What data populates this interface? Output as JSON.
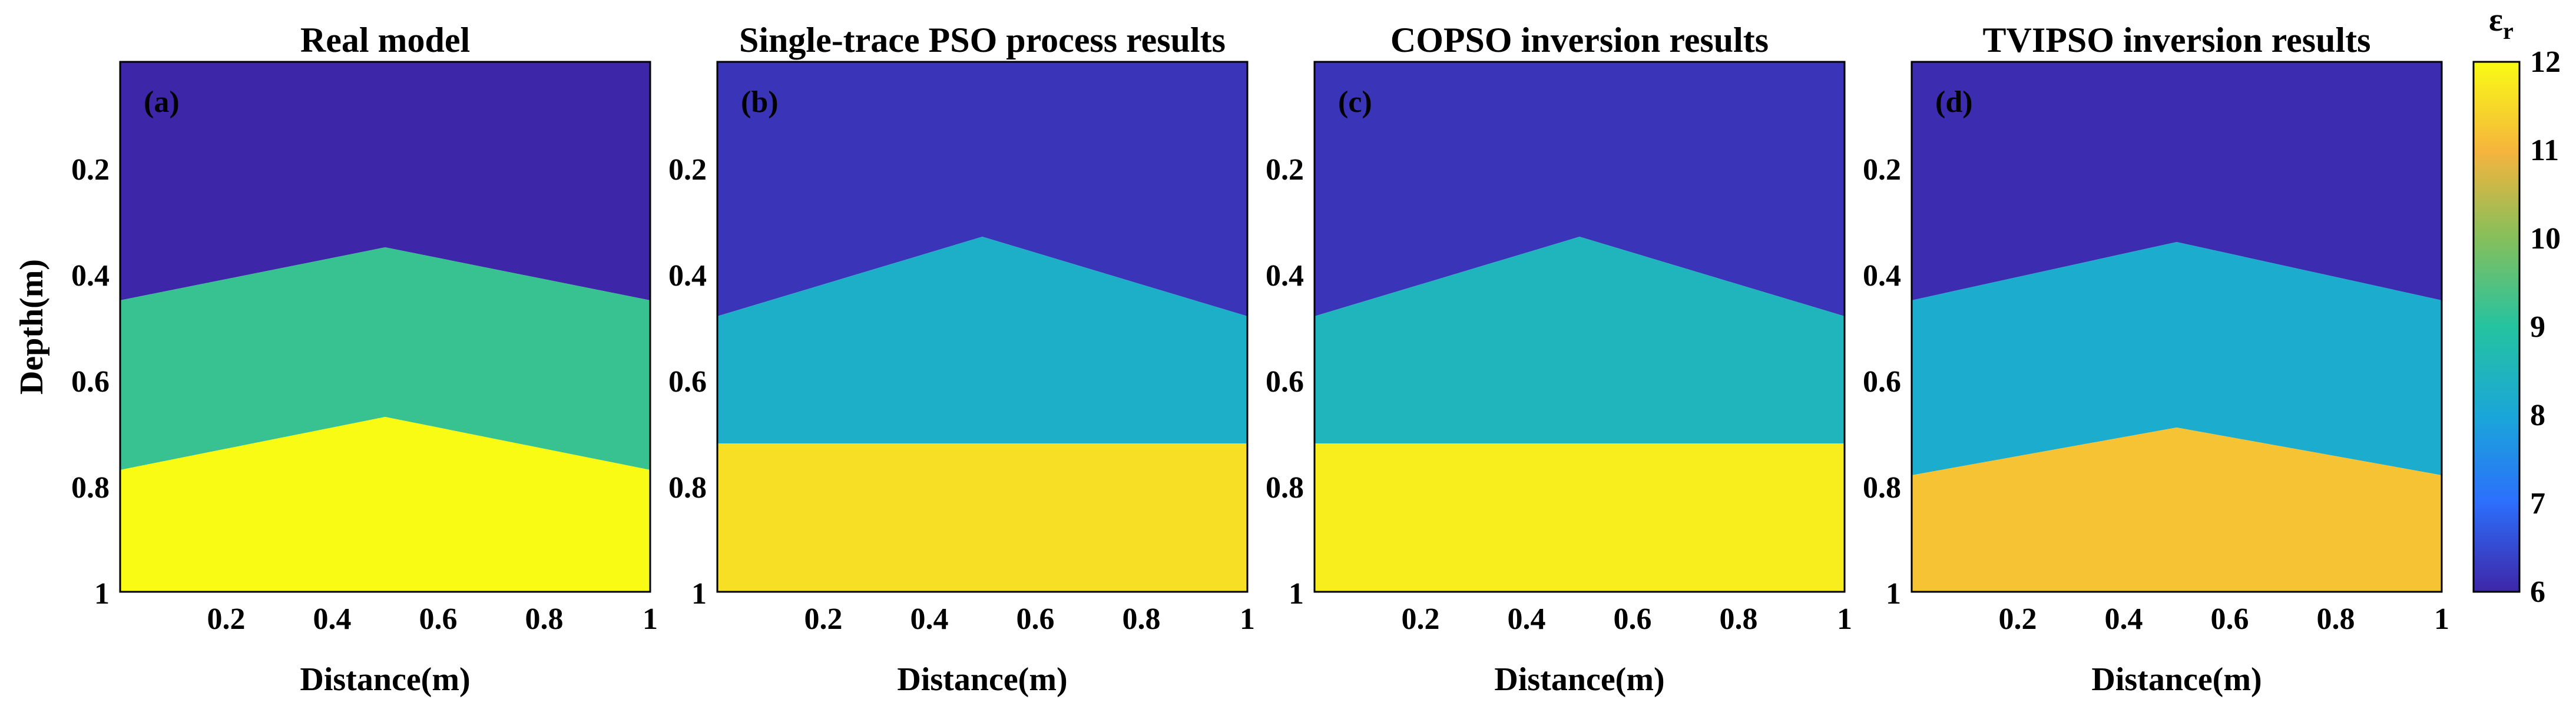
{
  "chart_data": {
    "type": "heatmap",
    "xlabel": "Distance(m)",
    "ylabel": "Depth(m)",
    "xlim": [
      0,
      1
    ],
    "ylim": [
      0,
      1
    ],
    "x_ticks": [
      "0.2",
      "0.4",
      "0.6",
      "0.8",
      "1"
    ],
    "y_ticks": [
      "0.2",
      "0.4",
      "0.6",
      "0.8",
      "1"
    ],
    "colorbar": {
      "label": "ε",
      "label_sub": "r",
      "range": [
        6,
        12
      ],
      "ticks": [
        "6",
        "7",
        "8",
        "9",
        "10",
        "11",
        "12"
      ]
    },
    "panels": [
      {
        "title": "Real model",
        "label": "(a)",
        "layers": [
          {
            "name": "top",
            "value": 6
          },
          {
            "name": "middle",
            "value": 9.2
          },
          {
            "name": "bottom",
            "value": 12
          }
        ],
        "interface1_depth": {
          "edge": 0.45,
          "center": 0.35
        },
        "interface2_depth": {
          "edge": 0.77,
          "center": 0.67
        }
      },
      {
        "title": "Single-trace PSO process results",
        "label": "(b)",
        "layers": [
          {
            "name": "top",
            "value": 6.2
          },
          {
            "name": "middle",
            "value": 8.3
          },
          {
            "name": "bottom",
            "value": 11.6
          }
        ],
        "interface1_depth": {
          "edge": 0.48,
          "center": 0.33
        },
        "interface2_depth": {
          "edge": 0.72,
          "center": 0.72
        }
      },
      {
        "title": "COPSO inversion results",
        "label": "(c)",
        "layers": [
          {
            "name": "top",
            "value": 6.2
          },
          {
            "name": "middle",
            "value": 8.5
          },
          {
            "name": "bottom",
            "value": 11.8
          }
        ],
        "interface1_depth": {
          "edge": 0.48,
          "center": 0.33
        },
        "interface2_depth": {
          "edge": 0.72,
          "center": 0.72
        }
      },
      {
        "title": "TVIPSO inversion results",
        "label": "(d)",
        "layers": [
          {
            "name": "top",
            "value": 6.1
          },
          {
            "name": "middle",
            "value": 8.2
          },
          {
            "name": "bottom",
            "value": 11.2
          }
        ],
        "interface1_depth": {
          "edge": 0.45,
          "center": 0.34
        },
        "interface2_depth": {
          "edge": 0.78,
          "center": 0.69
        }
      }
    ]
  }
}
